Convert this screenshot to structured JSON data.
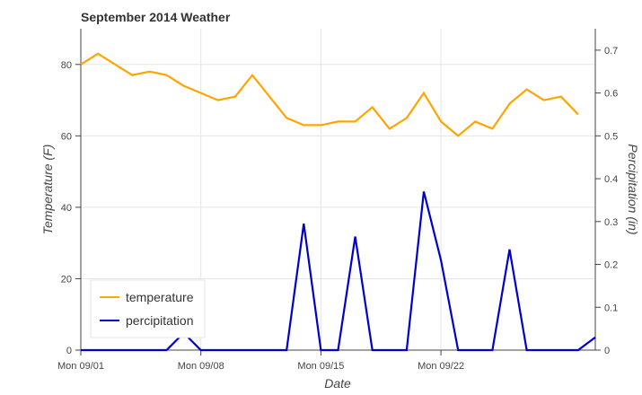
{
  "chart_data": {
    "type": "line",
    "title": "September 2014 Weather",
    "xlabel": "Date",
    "ylabel_left": "Temperature (F)",
    "ylabel_right": "Percipitation (in)",
    "x": [
      "2014-09-01",
      "2014-09-02",
      "2014-09-03",
      "2014-09-04",
      "2014-09-05",
      "2014-09-06",
      "2014-09-07",
      "2014-09-08",
      "2014-09-09",
      "2014-09-10",
      "2014-09-11",
      "2014-09-12",
      "2014-09-13",
      "2014-09-14",
      "2014-09-15",
      "2014-09-16",
      "2014-09-17",
      "2014-09-18",
      "2014-09-19",
      "2014-09-20",
      "2014-09-21",
      "2014-09-22",
      "2014-09-23",
      "2014-09-24",
      "2014-09-25",
      "2014-09-26",
      "2014-09-27",
      "2014-09-28",
      "2014-09-29",
      "2014-09-30",
      "2014-10-01"
    ],
    "x_ticks": [
      "Mon 09/01",
      "Mon 09/08",
      "Mon 09/15",
      "Mon 09/22"
    ],
    "y_left_ticks": [
      "0",
      "20",
      "40",
      "60",
      "80"
    ],
    "y_right_ticks": [
      "0",
      "0.1",
      "0.2",
      "0.3",
      "0.4",
      "0.5",
      "0.6",
      "0.7"
    ],
    "ylim_left": [
      0,
      90
    ],
    "ylim_right": [
      0,
      0.75
    ],
    "grid": true,
    "legend_position": "bottom-left",
    "series": [
      {
        "name": "temperature",
        "color": "#FFA500",
        "axis": "left",
        "values": [
          80,
          83,
          80,
          77,
          78,
          77,
          74,
          72,
          70,
          71,
          77,
          71,
          65,
          63,
          63,
          64,
          64,
          68,
          62,
          65,
          72,
          64,
          60,
          64,
          62,
          69,
          73,
          70,
          71,
          66,
          null
        ]
      },
      {
        "name": "percipitation",
        "color": "#0000CC",
        "axis": "right",
        "values": [
          0,
          0,
          0,
          0,
          0,
          0,
          0.04,
          0,
          0,
          0,
          0,
          0,
          0,
          0.295,
          0,
          0,
          0.265,
          0,
          0,
          0,
          0.37,
          0.21,
          0,
          0,
          0,
          0.235,
          0,
          0,
          0,
          0,
          0.03
        ]
      }
    ]
  }
}
